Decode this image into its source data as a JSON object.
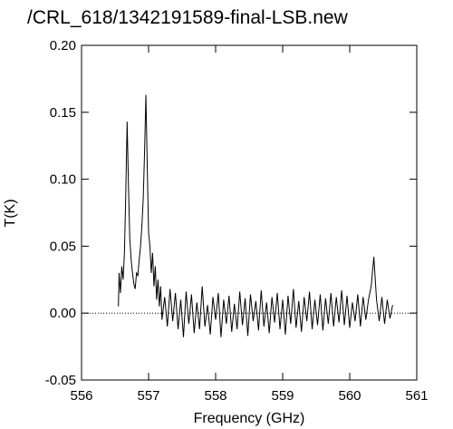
{
  "chart_data": {
    "type": "line",
    "title": "/CRL_618/1342191589-final-LSB.new",
    "xlabel": "Frequency (GHz)",
    "ylabel": "T(K)",
    "color": "#000000",
    "zero_line": true,
    "xlim": [
      556,
      561
    ],
    "xticks": [
      556,
      557,
      558,
      559,
      560,
      561
    ],
    "ylim": [
      -0.05,
      0.2
    ],
    "yticks": [
      {
        "value": -0.05,
        "label": "-0.05"
      },
      {
        "value": 0,
        "label": "0.00"
      },
      {
        "value": 0.05,
        "label": "0.05"
      },
      {
        "value": 0.1,
        "label": "0.10"
      },
      {
        "value": 0.15,
        "label": "0.15"
      },
      {
        "value": 0.2,
        "label": "0.20"
      }
    ],
    "x": [
      556.55,
      556.56,
      556.58,
      556.6,
      556.62,
      556.64,
      556.66,
      556.68,
      556.7,
      556.72,
      556.74,
      556.76,
      556.78,
      556.8,
      556.82,
      556.84,
      556.86,
      556.88,
      556.9,
      556.92,
      556.94,
      556.96,
      556.98,
      557.0,
      557.02,
      557.04,
      557.06,
      557.08,
      557.1,
      557.12,
      557.14,
      557.16,
      557.18,
      557.2,
      557.24,
      557.28,
      557.32,
      557.36,
      557.4,
      557.44,
      557.48,
      557.52,
      557.56,
      557.6,
      557.64,
      557.68,
      557.72,
      557.76,
      557.8,
      557.84,
      557.88,
      557.92,
      557.96,
      558.0,
      558.04,
      558.08,
      558.12,
      558.16,
      558.2,
      558.24,
      558.28,
      558.32,
      558.36,
      558.4,
      558.44,
      558.48,
      558.52,
      558.56,
      558.6,
      558.64,
      558.68,
      558.72,
      558.76,
      558.8,
      558.84,
      558.88,
      558.92,
      558.96,
      559.0,
      559.04,
      559.08,
      559.12,
      559.16,
      559.2,
      559.24,
      559.28,
      559.32,
      559.36,
      559.4,
      559.44,
      559.48,
      559.52,
      559.56,
      559.6,
      559.64,
      559.68,
      559.72,
      559.76,
      559.8,
      559.84,
      559.88,
      559.92,
      559.96,
      560.0,
      560.04,
      560.08,
      560.12,
      560.16,
      560.2,
      560.24,
      560.28,
      560.32,
      560.36,
      560.4,
      560.44,
      560.48,
      560.52,
      560.56,
      560.6,
      560.64
    ],
    "values": [
      0.005,
      0.03,
      0.015,
      0.035,
      0.025,
      0.045,
      0.09,
      0.143,
      0.095,
      0.055,
      0.04,
      0.03,
      0.022,
      0.018,
      0.03,
      0.028,
      0.04,
      0.05,
      0.065,
      0.085,
      0.12,
      0.163,
      0.11,
      0.06,
      0.05,
      0.03,
      0.045,
      0.02,
      0.035,
      0.01,
      0.025,
      0.005,
      0.02,
      -0.005,
      0.012,
      -0.01,
      0.018,
      -0.006,
      0.015,
      -0.012,
      0.01,
      -0.018,
      0.016,
      -0.008,
      0.014,
      -0.015,
      0.008,
      -0.012,
      0.02,
      -0.01,
      0.006,
      -0.016,
      0.012,
      -0.005,
      0.015,
      -0.018,
      0.01,
      -0.008,
      0.013,
      -0.014,
      0.007,
      -0.012,
      0.016,
      -0.009,
      0.011,
      -0.017,
      0.014,
      -0.006,
      0.009,
      -0.013,
      0.017,
      -0.01,
      0.008,
      -0.015,
      0.012,
      -0.007,
      0.015,
      -0.012,
      0.01,
      -0.016,
      0.013,
      -0.008,
      0.018,
      -0.011,
      0.009,
      -0.014,
      0.012,
      -0.006,
      0.016,
      -0.012,
      0.01,
      -0.009,
      0.014,
      -0.013,
      0.011,
      -0.008,
      0.015,
      -0.01,
      0.012,
      -0.007,
      0.017,
      -0.009,
      0.013,
      -0.011,
      0.008,
      -0.006,
      0.014,
      -0.01,
      0.012,
      -0.005,
      0.01,
      0.02,
      0.042,
      0.01,
      -0.006,
      0.012,
      -0.008,
      0.01,
      -0.004,
      0.006
    ]
  }
}
